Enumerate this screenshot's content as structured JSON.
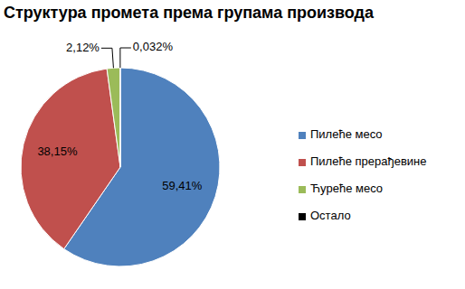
{
  "chart_data": {
    "type": "pie",
    "title": "Структура промета према групама производа",
    "categories": [
      "Пилеће месо",
      "Пилеће прерађевине",
      "Ћуреће месо",
      "Остало"
    ],
    "values": [
      59.41,
      38.15,
      2.12,
      0.032
    ],
    "value_labels": [
      "59,41%",
      "38,15%",
      "2,12%",
      "0,032%"
    ],
    "colors": [
      "#4f81bd",
      "#c0504d",
      "#9bbb59",
      "#000000"
    ],
    "data_labels": true,
    "legend": "right"
  }
}
